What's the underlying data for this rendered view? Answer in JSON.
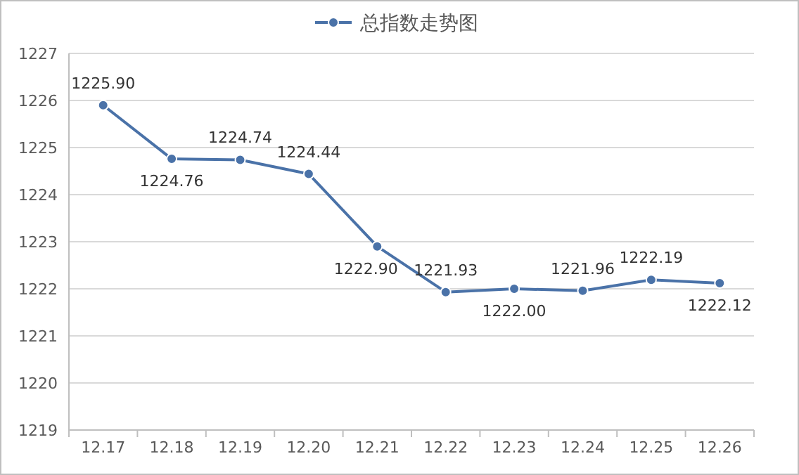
{
  "chart_data": {
    "type": "line",
    "categories": [
      "12.17",
      "12.18",
      "12.19",
      "12.20",
      "12.21",
      "12.22",
      "12.23",
      "12.24",
      "12.25",
      "12.26"
    ],
    "series": [
      {
        "name": "总指数走势图",
        "color": "#4a72a8",
        "values": [
          1225.9,
          1224.76,
          1224.74,
          1224.44,
          1222.9,
          1221.93,
          1222.0,
          1221.96,
          1222.19,
          1222.12
        ],
        "value_labels": [
          "1225.90",
          "1224.76",
          "1224.74",
          "1224.44",
          "1222.90",
          "1221.93",
          "1222.00",
          "1221.96",
          "1222.19",
          "1222.12"
        ]
      }
    ],
    "ylim": [
      1219,
      1227
    ],
    "yticks": [
      1219,
      1220,
      1221,
      1222,
      1223,
      1224,
      1225,
      1226,
      1227
    ],
    "grid": "y",
    "legend": "top",
    "marker": "circle",
    "line_style": "solid"
  }
}
